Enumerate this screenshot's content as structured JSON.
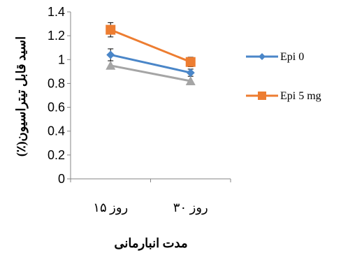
{
  "chart_data": {
    "type": "line",
    "title": "",
    "xlabel": "مدت انبارمانی",
    "ylabel": "اسید قابل تیتراسیون(٪)",
    "categories": [
      "روز ۱۵",
      "روز ۳۰"
    ],
    "ylim": [
      0,
      1.4
    ],
    "yticks": [
      0,
      0.2,
      0.4,
      0.6,
      0.8,
      1,
      1.2,
      1.4
    ],
    "ytick_labels": [
      "0",
      "0.2",
      "0.4",
      "0.6",
      "0.8",
      "1",
      "1.2",
      "1.4"
    ],
    "grid": false,
    "legend_position": "right",
    "series": [
      {
        "name": "Epi 0",
        "values": [
          1.04,
          0.89
        ],
        "errors": [
          0.05,
          0.03
        ],
        "color": "#4a86c8",
        "marker": "diamond"
      },
      {
        "name": "Epi 5 mg",
        "values": [
          1.25,
          0.98
        ],
        "errors": [
          0.06,
          0.04
        ],
        "color": "#ed7d31",
        "marker": "square"
      },
      {
        "name": "",
        "values": [
          0.95,
          0.82
        ],
        "errors": [
          0.0,
          0.0
        ],
        "color": "#a5a5a5",
        "marker": "triangle",
        "in_legend": false
      }
    ]
  }
}
